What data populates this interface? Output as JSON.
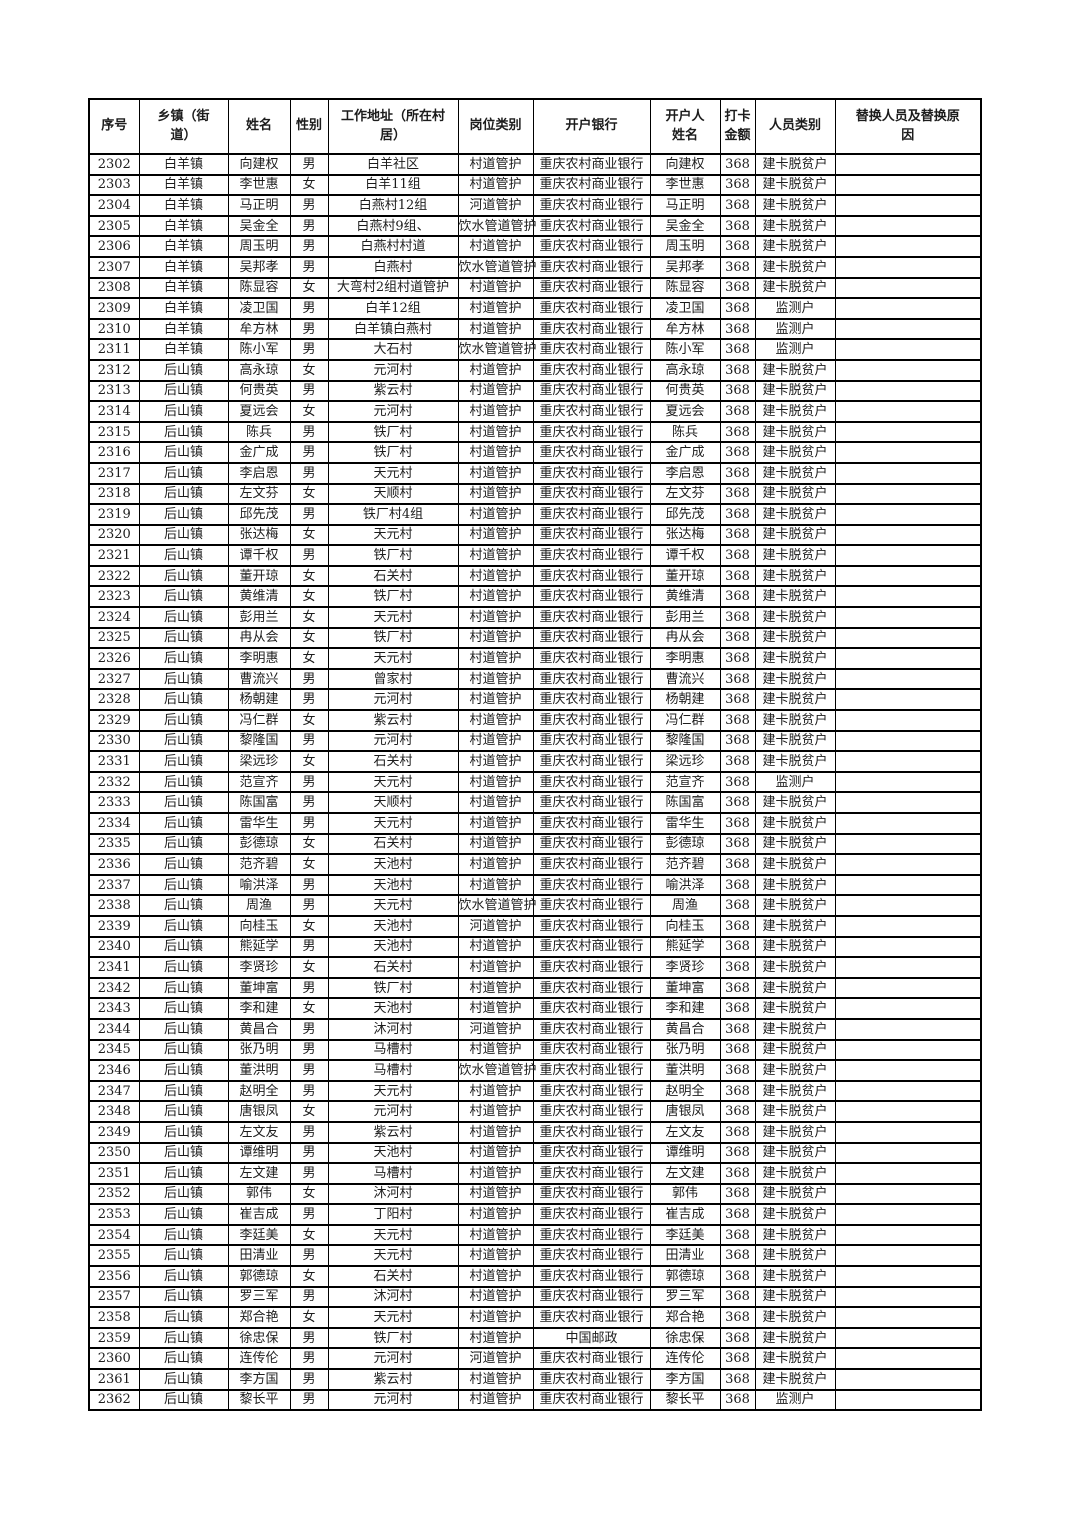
{
  "table": {
    "columns": [
      "序号",
      "乡镇（街道）",
      "姓名",
      "性别",
      "工作地址（所在村居）",
      "岗位类别",
      "开户银行",
      "开户人姓名",
      "打卡金额",
      "人员类别",
      "替换人员及替换原因"
    ],
    "rows": [
      [
        "2302",
        "白羊镇",
        "向建权",
        "男",
        "白羊社区",
        "村道管护",
        "重庆农村商业银行",
        "向建权",
        "368",
        "建卡脱贫户",
        ""
      ],
      [
        "2303",
        "白羊镇",
        "李世惠",
        "女",
        "白羊11组",
        "村道管护",
        "重庆农村商业银行",
        "李世惠",
        "368",
        "建卡脱贫户",
        ""
      ],
      [
        "2304",
        "白羊镇",
        "马正明",
        "男",
        "白燕村12组",
        "河道管护",
        "重庆农村商业银行",
        "马正明",
        "368",
        "建卡脱贫户",
        ""
      ],
      [
        "2305",
        "白羊镇",
        "吴金全",
        "男",
        "白燕村9组、",
        "饮水管道管护",
        "重庆农村商业银行",
        "吴金全",
        "368",
        "建卡脱贫户",
        ""
      ],
      [
        "2306",
        "白羊镇",
        "周玉明",
        "男",
        "白燕村村道",
        "村道管护",
        "重庆农村商业银行",
        "周玉明",
        "368",
        "建卡脱贫户",
        ""
      ],
      [
        "2307",
        "白羊镇",
        "吴邦孝",
        "男",
        "白燕村",
        "饮水管道管护",
        "重庆农村商业银行",
        "吴邦孝",
        "368",
        "建卡脱贫户",
        ""
      ],
      [
        "2308",
        "白羊镇",
        "陈显容",
        "女",
        "大弯村2组村道管护",
        "村道管护",
        "重庆农村商业银行",
        "陈显容",
        "368",
        "建卡脱贫户",
        ""
      ],
      [
        "2309",
        "白羊镇",
        "凌卫国",
        "男",
        "白羊12组",
        "村道管护",
        "重庆农村商业银行",
        "凌卫国",
        "368",
        "监测户",
        ""
      ],
      [
        "2310",
        "白羊镇",
        "牟方林",
        "男",
        "白羊镇白燕村",
        "村道管护",
        "重庆农村商业银行",
        "牟方林",
        "368",
        "监测户",
        ""
      ],
      [
        "2311",
        "白羊镇",
        "陈小军",
        "男",
        "大石村",
        "饮水管道管护",
        "重庆农村商业银行",
        "陈小军",
        "368",
        "监测户",
        ""
      ],
      [
        "2312",
        "后山镇",
        "高永琼",
        "女",
        "元河村",
        "村道管护",
        "重庆农村商业银行",
        "高永琼",
        "368",
        "建卡脱贫户",
        ""
      ],
      [
        "2313",
        "后山镇",
        "何贵英",
        "男",
        "紫云村",
        "村道管护",
        "重庆农村商业银行",
        "何贵英",
        "368",
        "建卡脱贫户",
        ""
      ],
      [
        "2314",
        "后山镇",
        "夏远会",
        "女",
        "元河村",
        "村道管护",
        "重庆农村商业银行",
        "夏远会",
        "368",
        "建卡脱贫户",
        ""
      ],
      [
        "2315",
        "后山镇",
        "陈兵",
        "男",
        "铁厂村",
        "村道管护",
        "重庆农村商业银行",
        "陈兵",
        "368",
        "建卡脱贫户",
        ""
      ],
      [
        "2316",
        "后山镇",
        "金广成",
        "男",
        "铁厂村",
        "村道管护",
        "重庆农村商业银行",
        "金广成",
        "368",
        "建卡脱贫户",
        ""
      ],
      [
        "2317",
        "后山镇",
        "李启恩",
        "男",
        "天元村",
        "村道管护",
        "重庆农村商业银行",
        "李启恩",
        "368",
        "建卡脱贫户",
        ""
      ],
      [
        "2318",
        "后山镇",
        "左文芬",
        "女",
        "天顺村",
        "村道管护",
        "重庆农村商业银行",
        "左文芬",
        "368",
        "建卡脱贫户",
        ""
      ],
      [
        "2319",
        "后山镇",
        "邱先茂",
        "男",
        "铁厂村4组",
        "村道管护",
        "重庆农村商业银行",
        "邱先茂",
        "368",
        "建卡脱贫户",
        ""
      ],
      [
        "2320",
        "后山镇",
        "张达梅",
        "女",
        "天元村",
        "村道管护",
        "重庆农村商业银行",
        "张达梅",
        "368",
        "建卡脱贫户",
        ""
      ],
      [
        "2321",
        "后山镇",
        "谭千权",
        "男",
        "铁厂村",
        "村道管护",
        "重庆农村商业银行",
        "谭千权",
        "368",
        "建卡脱贫户",
        ""
      ],
      [
        "2322",
        "后山镇",
        "董开琼",
        "女",
        "石关村",
        "村道管护",
        "重庆农村商业银行",
        "董开琼",
        "368",
        "建卡脱贫户",
        ""
      ],
      [
        "2323",
        "后山镇",
        "黄维清",
        "女",
        "铁厂村",
        "村道管护",
        "重庆农村商业银行",
        "黄维清",
        "368",
        "建卡脱贫户",
        ""
      ],
      [
        "2324",
        "后山镇",
        "彭用兰",
        "女",
        "天元村",
        "村道管护",
        "重庆农村商业银行",
        "彭用兰",
        "368",
        "建卡脱贫户",
        ""
      ],
      [
        "2325",
        "后山镇",
        "冉从会",
        "女",
        "铁厂村",
        "村道管护",
        "重庆农村商业银行",
        "冉从会",
        "368",
        "建卡脱贫户",
        ""
      ],
      [
        "2326",
        "后山镇",
        "李明惠",
        "女",
        "天元村",
        "村道管护",
        "重庆农村商业银行",
        "李明惠",
        "368",
        "建卡脱贫户",
        ""
      ],
      [
        "2327",
        "后山镇",
        "曹流兴",
        "男",
        "曾家村",
        "村道管护",
        "重庆农村商业银行",
        "曹流兴",
        "368",
        "建卡脱贫户",
        ""
      ],
      [
        "2328",
        "后山镇",
        "杨朝建",
        "男",
        "元河村",
        "村道管护",
        "重庆农村商业银行",
        "杨朝建",
        "368",
        "建卡脱贫户",
        ""
      ],
      [
        "2329",
        "后山镇",
        "冯仁群",
        "女",
        "紫云村",
        "村道管护",
        "重庆农村商业银行",
        "冯仁群",
        "368",
        "建卡脱贫户",
        ""
      ],
      [
        "2330",
        "后山镇",
        "黎隆国",
        "男",
        "元河村",
        "村道管护",
        "重庆农村商业银行",
        "黎隆国",
        "368",
        "建卡脱贫户",
        ""
      ],
      [
        "2331",
        "后山镇",
        "梁远珍",
        "女",
        "石关村",
        "村道管护",
        "重庆农村商业银行",
        "梁远珍",
        "368",
        "建卡脱贫户",
        ""
      ],
      [
        "2332",
        "后山镇",
        "范宣齐",
        "男",
        "天元村",
        "村道管护",
        "重庆农村商业银行",
        "范宣齐",
        "368",
        "监测户",
        ""
      ],
      [
        "2333",
        "后山镇",
        "陈国富",
        "男",
        "天顺村",
        "村道管护",
        "重庆农村商业银行",
        "陈国富",
        "368",
        "建卡脱贫户",
        ""
      ],
      [
        "2334",
        "后山镇",
        "雷华生",
        "男",
        "天元村",
        "村道管护",
        "重庆农村商业银行",
        "雷华生",
        "368",
        "建卡脱贫户",
        ""
      ],
      [
        "2335",
        "后山镇",
        "彭德琼",
        "女",
        "石关村",
        "村道管护",
        "重庆农村商业银行",
        "彭德琼",
        "368",
        "建卡脱贫户",
        ""
      ],
      [
        "2336",
        "后山镇",
        "范齐碧",
        "女",
        "天池村",
        "村道管护",
        "重庆农村商业银行",
        "范齐碧",
        "368",
        "建卡脱贫户",
        ""
      ],
      [
        "2337",
        "后山镇",
        "喻洪泽",
        "男",
        "天池村",
        "村道管护",
        "重庆农村商业银行",
        "喻洪泽",
        "368",
        "建卡脱贫户",
        ""
      ],
      [
        "2338",
        "后山镇",
        "周渔",
        "男",
        "天元村",
        "饮水管道管护",
        "重庆农村商业银行",
        "周渔",
        "368",
        "建卡脱贫户",
        ""
      ],
      [
        "2339",
        "后山镇",
        "向桂玉",
        "女",
        "天池村",
        "河道管护",
        "重庆农村商业银行",
        "向桂玉",
        "368",
        "建卡脱贫户",
        ""
      ],
      [
        "2340",
        "后山镇",
        "熊延学",
        "男",
        "天池村",
        "村道管护",
        "重庆农村商业银行",
        "熊延学",
        "368",
        "建卡脱贫户",
        ""
      ],
      [
        "2341",
        "后山镇",
        "李贤珍",
        "女",
        "石关村",
        "村道管护",
        "重庆农村商业银行",
        "李贤珍",
        "368",
        "建卡脱贫户",
        ""
      ],
      [
        "2342",
        "后山镇",
        "董坤富",
        "男",
        "铁厂村",
        "村道管护",
        "重庆农村商业银行",
        "董坤富",
        "368",
        "建卡脱贫户",
        ""
      ],
      [
        "2343",
        "后山镇",
        "李和建",
        "女",
        "天池村",
        "村道管护",
        "重庆农村商业银行",
        "李和建",
        "368",
        "建卡脱贫户",
        ""
      ],
      [
        "2344",
        "后山镇",
        "黄昌合",
        "男",
        "沐河村",
        "河道管护",
        "重庆农村商业银行",
        "黄昌合",
        "368",
        "建卡脱贫户",
        ""
      ],
      [
        "2345",
        "后山镇",
        "张乃明",
        "男",
        "马槽村",
        "村道管护",
        "重庆农村商业银行",
        "张乃明",
        "368",
        "建卡脱贫户",
        ""
      ],
      [
        "2346",
        "后山镇",
        "董洪明",
        "男",
        "马槽村",
        "饮水管道管护",
        "重庆农村商业银行",
        "董洪明",
        "368",
        "建卡脱贫户",
        ""
      ],
      [
        "2347",
        "后山镇",
        "赵明全",
        "男",
        "天元村",
        "村道管护",
        "重庆农村商业银行",
        "赵明全",
        "368",
        "建卡脱贫户",
        ""
      ],
      [
        "2348",
        "后山镇",
        "唐银凤",
        "女",
        "元河村",
        "村道管护",
        "重庆农村商业银行",
        "唐银凤",
        "368",
        "建卡脱贫户",
        ""
      ],
      [
        "2349",
        "后山镇",
        "左文友",
        "男",
        "紫云村",
        "村道管护",
        "重庆农村商业银行",
        "左文友",
        "368",
        "建卡脱贫户",
        ""
      ],
      [
        "2350",
        "后山镇",
        "谭维明",
        "男",
        "天池村",
        "村道管护",
        "重庆农村商业银行",
        "谭维明",
        "368",
        "建卡脱贫户",
        ""
      ],
      [
        "2351",
        "后山镇",
        "左文建",
        "男",
        "马槽村",
        "村道管护",
        "重庆农村商业银行",
        "左文建",
        "368",
        "建卡脱贫户",
        ""
      ],
      [
        "2352",
        "后山镇",
        "郭伟",
        "女",
        "沐河村",
        "村道管护",
        "重庆农村商业银行",
        "郭伟",
        "368",
        "建卡脱贫户",
        ""
      ],
      [
        "2353",
        "后山镇",
        "崔吉成",
        "男",
        "丁阳村",
        "村道管护",
        "重庆农村商业银行",
        "崔吉成",
        "368",
        "建卡脱贫户",
        ""
      ],
      [
        "2354",
        "后山镇",
        "李廷美",
        "女",
        "天元村",
        "村道管护",
        "重庆农村商业银行",
        "李廷美",
        "368",
        "建卡脱贫户",
        ""
      ],
      [
        "2355",
        "后山镇",
        "田清业",
        "男",
        "天元村",
        "村道管护",
        "重庆农村商业银行",
        "田清业",
        "368",
        "建卡脱贫户",
        ""
      ],
      [
        "2356",
        "后山镇",
        "郭德琼",
        "女",
        "石关村",
        "村道管护",
        "重庆农村商业银行",
        "郭德琼",
        "368",
        "建卡脱贫户",
        ""
      ],
      [
        "2357",
        "后山镇",
        "罗三军",
        "男",
        "沐河村",
        "村道管护",
        "重庆农村商业银行",
        "罗三军",
        "368",
        "建卡脱贫户",
        ""
      ],
      [
        "2358",
        "后山镇",
        "郑合艳",
        "女",
        "天元村",
        "村道管护",
        "重庆农村商业银行",
        "郑合艳",
        "368",
        "建卡脱贫户",
        ""
      ],
      [
        "2359",
        "后山镇",
        "徐忠保",
        "男",
        "铁厂村",
        "村道管护",
        "中国邮政",
        "徐忠保",
        "368",
        "建卡脱贫户",
        ""
      ],
      [
        "2360",
        "后山镇",
        "连传伦",
        "男",
        "元河村",
        "河道管护",
        "重庆农村商业银行",
        "连传伦",
        "368",
        "建卡脱贫户",
        ""
      ],
      [
        "2361",
        "后山镇",
        "李方国",
        "男",
        "紫云村",
        "村道管护",
        "重庆农村商业银行",
        "李方国",
        "368",
        "建卡脱贫户",
        ""
      ],
      [
        "2362",
        "后山镇",
        "黎长平",
        "男",
        "元河村",
        "村道管护",
        "重庆农村商业银行",
        "黎长平",
        "368",
        "监测户",
        ""
      ]
    ]
  }
}
